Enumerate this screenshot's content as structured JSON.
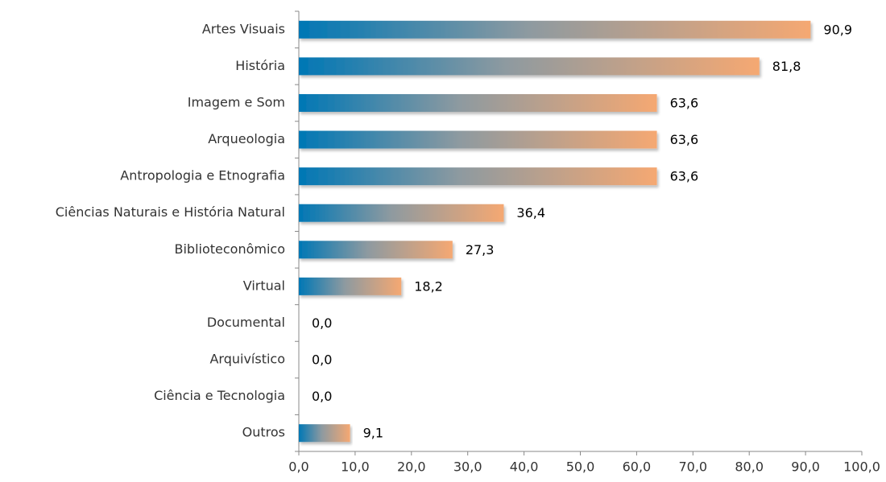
{
  "chart_data": {
    "type": "barh",
    "categories": [
      "Artes Visuais",
      "História",
      "Imagem e Som",
      "Arqueologia",
      "Antropologia e Etnografia",
      "Ciências Naturais e História Natural",
      "Biblioteconômico",
      "Virtual",
      "Documental",
      "Arquivístico",
      "Ciência e Tecnologia",
      "Outros"
    ],
    "values": [
      90.9,
      81.8,
      63.6,
      63.6,
      63.6,
      36.4,
      27.3,
      18.2,
      0.0,
      0.0,
      0.0,
      9.1
    ],
    "value_labels": [
      "90,9",
      "81,8",
      "63,6",
      "63,6",
      "63,6",
      "36,4",
      "27,3",
      "18,2",
      "0,0",
      "0,0",
      "0,0",
      "9,1"
    ],
    "gradient": [
      "#0077b5",
      "#8e9aa0",
      "#f5a872"
    ],
    "xlim": [
      0,
      100
    ],
    "xticks": [
      {
        "value": 0,
        "label": "0,0"
      },
      {
        "value": 10,
        "label": "10,0"
      },
      {
        "value": 20,
        "label": "20,0"
      },
      {
        "value": 30,
        "label": "30,0"
      },
      {
        "value": 40,
        "label": "40,0"
      },
      {
        "value": 50,
        "label": "50,0"
      },
      {
        "value": 60,
        "label": "60,0"
      },
      {
        "value": 70,
        "label": "70,0"
      },
      {
        "value": 80,
        "label": "80,0"
      },
      {
        "value": 90,
        "label": "90,0"
      },
      {
        "value": 100,
        "label": "100,0"
      }
    ],
    "grid": false
  }
}
